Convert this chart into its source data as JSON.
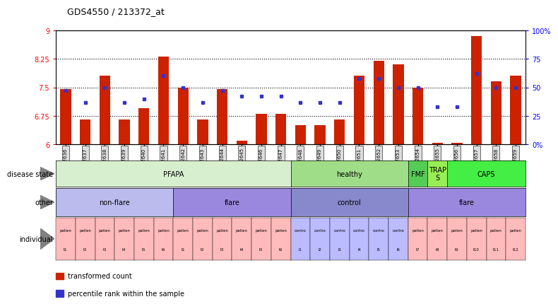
{
  "title": "GDS4550 / 213372_at",
  "gsm_labels": [
    "GSM442636",
    "GSM442637",
    "GSM442638",
    "GSM442639",
    "GSM442640",
    "GSM442641",
    "GSM442642",
    "GSM442643",
    "GSM442644",
    "GSM442645",
    "GSM442646",
    "GSM442647",
    "GSM442648",
    "GSM442649",
    "GSM442650",
    "GSM442651",
    "GSM442652",
    "GSM442653",
    "GSM442654",
    "GSM442655",
    "GSM442656",
    "GSM442657",
    "GSM442658",
    "GSM442659"
  ],
  "bar_values": [
    7.45,
    6.65,
    7.8,
    6.65,
    6.95,
    8.3,
    7.5,
    6.65,
    7.45,
    6.1,
    6.8,
    6.8,
    6.5,
    6.5,
    6.65,
    7.8,
    8.2,
    8.1,
    7.5,
    6.05,
    6.05,
    8.85,
    7.65,
    7.8
  ],
  "dot_values_pct": [
    47,
    37,
    50,
    37,
    40,
    60,
    50,
    37,
    47,
    42,
    42,
    42,
    37,
    37,
    37,
    58,
    58,
    50,
    50,
    33,
    33,
    62,
    50,
    50
  ],
  "ylim": [
    6.0,
    9.0
  ],
  "yticks": [
    6.0,
    6.75,
    7.5,
    8.25,
    9.0
  ],
  "ytick_labels": [
    "6",
    "6.75",
    "7.5",
    "8.25",
    "9"
  ],
  "right_yticks": [
    0,
    25,
    50,
    75,
    100
  ],
  "right_ytick_labels": [
    "0%",
    "25",
    "50",
    "75",
    "100%"
  ],
  "hlines": [
    6.75,
    7.5,
    8.25
  ],
  "bar_color": "#CC2200",
  "dot_color": "#3333CC",
  "disease_state_row": [
    {
      "label": "PFAPA",
      "start": 0,
      "end": 11,
      "color": "#D8EFCF"
    },
    {
      "label": "healthy",
      "start": 12,
      "end": 17,
      "color": "#A0DD88"
    },
    {
      "label": "FMF",
      "start": 18,
      "end": 18,
      "color": "#55CC55"
    },
    {
      "label": "TRAP\nS",
      "start": 19,
      "end": 19,
      "color": "#99EE55"
    },
    {
      "label": "CAPS",
      "start": 20,
      "end": 23,
      "color": "#44EE44"
    }
  ],
  "other_row": [
    {
      "label": "non-flare",
      "start": 0,
      "end": 5,
      "color": "#BBBBEE"
    },
    {
      "label": "flare",
      "start": 6,
      "end": 11,
      "color": "#9988DD"
    },
    {
      "label": "control",
      "start": 12,
      "end": 17,
      "color": "#8888CC"
    },
    {
      "label": "flare",
      "start": 18,
      "end": 23,
      "color": "#9988DD"
    }
  ],
  "individual_top_labels": [
    "patien",
    "patien",
    "patien",
    "patien",
    "patien",
    "patien",
    "patien",
    "patien",
    "patien",
    "patien",
    "patien",
    "patien",
    "contro",
    "contro",
    "contro",
    "contro",
    "contro",
    "contro",
    "patien",
    "patien",
    "patien",
    "patien",
    "patien",
    "patien"
  ],
  "individual_bot_labels": [
    "t1",
    "t2",
    "t3",
    "t4",
    "t5",
    "t6",
    "t1",
    "t2",
    "t3",
    "t4",
    "t5",
    "t6",
    "l1",
    "l2",
    "l3",
    "l4",
    "l5",
    "l6",
    "t7",
    "t8",
    "t9",
    "t10",
    "t11",
    "t12"
  ],
  "individual_colors": [
    "#FFBBBB",
    "#FFBBBB",
    "#FFBBBB",
    "#FFBBBB",
    "#FFBBBB",
    "#FFBBBB",
    "#FFBBBB",
    "#FFBBBB",
    "#FFBBBB",
    "#FFBBBB",
    "#FFBBBB",
    "#FFBBBB",
    "#BBBBFF",
    "#BBBBFF",
    "#BBBBFF",
    "#BBBBFF",
    "#BBBBFF",
    "#BBBBFF",
    "#FFBBBB",
    "#FFBBBB",
    "#FFBBBB",
    "#FFBBBB",
    "#FFBBBB",
    "#FFBBBB"
  ],
  "legend_items": [
    {
      "color": "#CC2200",
      "label": "transformed count"
    },
    {
      "color": "#3333CC",
      "label": "percentile rank within the sample"
    }
  ],
  "n_bars": 24,
  "xtick_bg": "#DDDDDD"
}
